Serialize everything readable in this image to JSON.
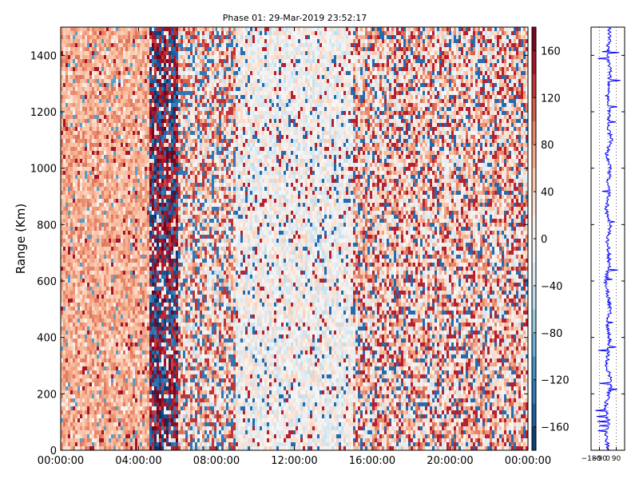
{
  "chart_data": [
    {
      "type": "heatmap",
      "title": "Phase 01: 29-Mar-2019 23:52:17",
      "xlabel": "",
      "ylabel": "Range (Km)",
      "x_ticks": [
        "00:00:00",
        "04:00:00",
        "08:00:00",
        "12:00:00",
        "16:00:00",
        "20:00:00",
        "00:00:00"
      ],
      "x_range_hours": [
        0,
        24
      ],
      "y_ticks": [
        0,
        200,
        400,
        600,
        800,
        1000,
        1200,
        1400
      ],
      "ylim": [
        0,
        1500
      ],
      "colorbar": {
        "colormap": "RdBu_r",
        "range": [
          -180,
          180
        ],
        "ticks": [
          "160",
          "120",
          "80",
          "40",
          "0",
          "−40",
          "−80",
          "−120",
          "−160"
        ],
        "tick_values": [
          160,
          120,
          80,
          40,
          0,
          -40,
          -80,
          -120,
          -160
        ]
      },
      "description_of_values": {
        "hours_0_to_4.5": "predominantly +40 to +100 (light red)",
        "hours_4.5_to_6": "alternating strongly positive and negative (dark red / dark blue)",
        "hours_9_to_15": "mostly near 0 (white), mixed",
        "hours_15_to_24": "mixed random phase with moderate red bias"
      }
    },
    {
      "type": "line",
      "title": "",
      "xlabel": "",
      "ylabel": "",
      "x_ticks": [
        "−180",
        "−90",
        "0",
        "90"
      ],
      "xlim": [
        -180,
        180
      ],
      "ylim": [
        0,
        1500
      ],
      "series": [
        {
          "color": "#0000ff"
        }
      ],
      "profile_y_km": [
        0,
        50,
        100,
        150,
        200,
        250,
        300,
        350,
        400,
        450,
        500,
        550,
        600,
        650,
        700,
        750,
        800,
        850,
        900,
        950,
        1000,
        1050,
        1100,
        1150,
        1200,
        1250,
        1300,
        1350,
        1400,
        1450,
        1500
      ],
      "profile_phase_deg": [
        5,
        -20,
        15,
        -30,
        10,
        40,
        -15,
        5,
        20,
        -10,
        30,
        0,
        -25,
        15,
        10,
        -5,
        35,
        -20,
        10,
        5,
        25,
        -15,
        40,
        0,
        20,
        -10,
        15,
        30,
        -5,
        10,
        20
      ]
    }
  ],
  "colors": {
    "profile_line": "#0000ff",
    "cmap_neg": "#053061",
    "cmap_mid": "#f7f7f7",
    "cmap_pos": "#67001f"
  }
}
